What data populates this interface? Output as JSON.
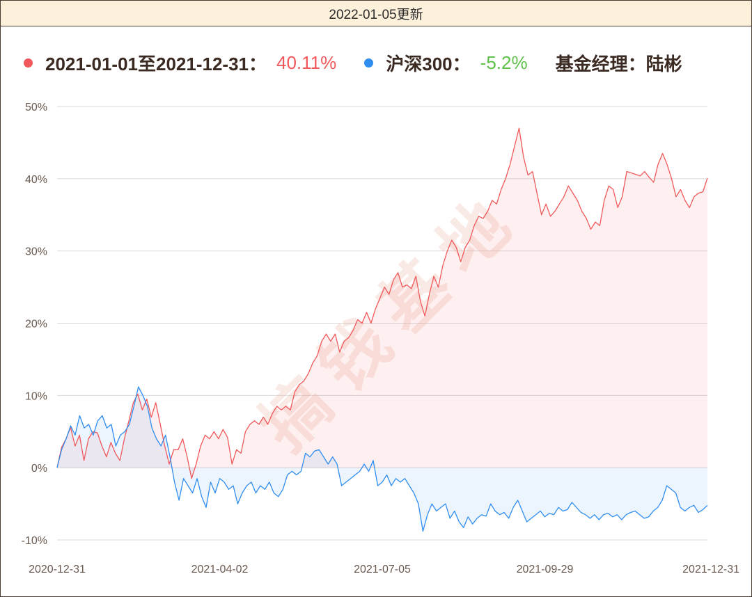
{
  "header": {
    "update_text": "2022-01-05更新"
  },
  "legend": {
    "fund_label": "2021-01-01至2021-12-31：",
    "fund_value": "40.11%",
    "index_label": "沪深300：",
    "index_value": "-5.2%",
    "manager_label": "基金经理：陆彬"
  },
  "watermark": "搞钱基地",
  "colors": {
    "fund": "#f0585a",
    "index": "#2f8df0",
    "fund_value": "#f0585a",
    "index_value": "#5ec24a",
    "text": "#3a2a22",
    "header_bg": "#fdf1dc"
  },
  "chart_data": {
    "type": "line",
    "y_unit": "%",
    "ylim": [
      -10,
      50
    ],
    "yticks": [
      "50%",
      "40%",
      "30%",
      "20%",
      "10%",
      "0%",
      "-10%"
    ],
    "xticks": [
      "2020-12-31",
      "2021-04-02",
      "2021-07-05",
      "2021-09-29",
      "2021-12-31"
    ],
    "grid": true,
    "legend_position": "top",
    "series": [
      {
        "name": "2021-01-01至2021-12-31",
        "color": "#f0585a",
        "area": true,
        "values": [
          0,
          2.8,
          4,
          5.6,
          3,
          4.5,
          1,
          4,
          5,
          4.8,
          3,
          1.5,
          3.5,
          2,
          1,
          4,
          6.5,
          9,
          10.2,
          8,
          9.5,
          7,
          9,
          6,
          3,
          0.5,
          2.5,
          2.5,
          4,
          1.5,
          -1.5,
          0.5,
          3,
          4.5,
          4,
          5,
          4,
          5.3,
          4.2,
          0.5,
          2.5,
          2,
          5,
          6,
          6.5,
          6,
          7,
          6,
          7.5,
          8.5,
          8,
          8.5,
          8,
          10.5,
          11.5,
          12,
          13,
          14.5,
          15.5,
          17.5,
          18.5,
          17.5,
          18.5,
          16,
          17.5,
          18,
          19,
          20.5,
          20,
          21.5,
          20,
          22,
          23.5,
          25,
          24,
          26,
          27,
          25,
          25.3,
          24.8,
          26.5,
          23,
          21,
          24,
          26.5,
          25,
          28,
          30,
          31.5,
          30.5,
          28.5,
          30.5,
          31.5,
          33.5,
          34.8,
          34.5,
          35.5,
          37,
          36.5,
          38.5,
          40,
          42,
          44.5,
          47,
          43,
          40.5,
          41,
          38,
          35,
          36.5,
          34.8,
          35.5,
          36.5,
          37.5,
          39,
          38,
          37,
          35.5,
          34.5,
          33,
          34,
          33.5,
          37,
          39,
          38.5,
          36,
          37.5,
          41,
          40.8,
          40.6,
          40.4,
          41,
          40.2,
          39.5,
          42,
          43.5,
          42,
          40,
          37.5,
          38.5,
          37,
          36,
          37.5,
          38,
          38.2,
          40.11
        ]
      },
      {
        "name": "沪深300",
        "color": "#2f8df0",
        "area": true,
        "values": [
          0,
          2.5,
          4,
          5.8,
          4.5,
          7.2,
          5.5,
          6,
          4.5,
          6.5,
          7.2,
          5.5,
          6,
          3,
          4.5,
          5,
          6,
          8.5,
          11.2,
          10,
          8.5,
          5.5,
          4,
          3,
          4.5,
          1.5,
          -2,
          -4.5,
          -1.5,
          -2.5,
          -3.5,
          -1.5,
          -4,
          -5.5,
          -2,
          -3.5,
          -1.5,
          -2,
          -3,
          -2.5,
          -5,
          -3.5,
          -2.5,
          -2,
          -3.5,
          -2.5,
          -3,
          -2,
          -3.5,
          -4,
          -3,
          -1,
          -0.5,
          -1,
          -0.5,
          2,
          1.5,
          2.3,
          2.5,
          1.5,
          0.5,
          1.5,
          0.5,
          -2.5,
          -2,
          -1.5,
          -1,
          -0.5,
          0.5,
          -0.5,
          1,
          -2.5,
          -2,
          -1,
          -2.5,
          -1.5,
          -2,
          -1.5,
          -2.5,
          -3.5,
          -5,
          -8.8,
          -6.5,
          -5,
          -6,
          -5.5,
          -5,
          -7,
          -6,
          -7.5,
          -8.3,
          -6.8,
          -7.8,
          -7,
          -6.5,
          -6.7,
          -5,
          -6,
          -6.5,
          -6.2,
          -7,
          -5.5,
          -4.5,
          -6,
          -7.5,
          -7,
          -6.5,
          -6,
          -6.8,
          -6.3,
          -6.5,
          -5.5,
          -6,
          -5.8,
          -4.8,
          -5.5,
          -6.2,
          -6.5,
          -7,
          -6.5,
          -7.2,
          -6.5,
          -6.3,
          -6.8,
          -6.5,
          -7.2,
          -6.5,
          -6.2,
          -6,
          -6.5,
          -7,
          -6.8,
          -6,
          -5.5,
          -4.5,
          -2.5,
          -3,
          -3.5,
          -5.5,
          -6,
          -5.5,
          -5.2,
          -6.2,
          -5.8,
          -5.2
        ]
      }
    ]
  }
}
